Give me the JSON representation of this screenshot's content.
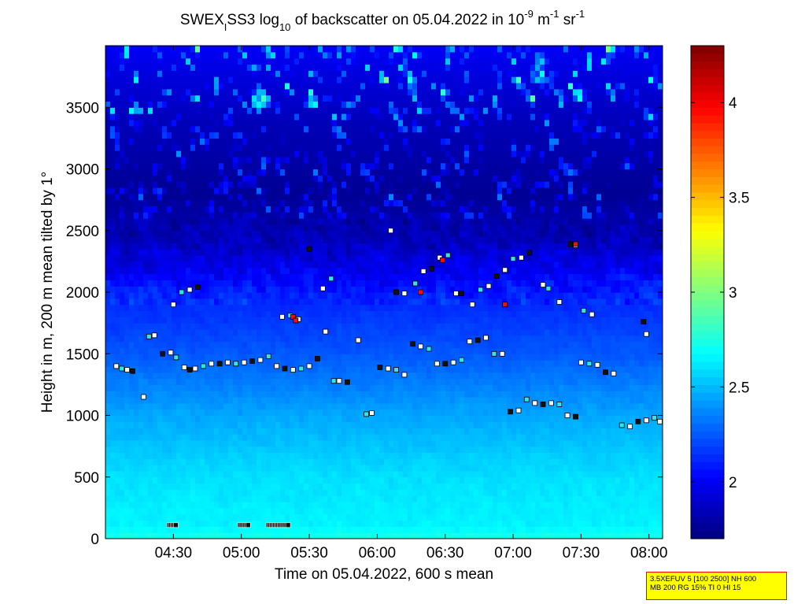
{
  "title": {
    "pre": "SWEX",
    "sub1": "I",
    "mid": "SS3 log",
    "sub2": "10",
    "post": " of backscatter on 05.04.2022 in 10",
    "sup1": "-9",
    "unit1": " m",
    "sup2": "-1",
    "unit2": " sr",
    "sup3": "-1"
  },
  "info_box": {
    "line1": "3.5XEFUV 5 [100 2500] NH 600",
    "line2": "MB 200 RG 15% TI 0 HI 15"
  },
  "colors": {
    "frame": "#000000",
    "info_border": "#ff0000",
    "info_fill": "#ffff00",
    "colormap": "jet"
  },
  "chart_data": {
    "type": "heatmap",
    "xlabel": "Time on 05.04.2022, 600 s mean",
    "ylabel": "Height in m, 200 m mean tilted by 1°",
    "x_range_hours": [
      4.0,
      8.1
    ],
    "y_range_m": [
      0,
      4000
    ],
    "x_ticks": [
      {
        "value": 4.5,
        "label": "04:30"
      },
      {
        "value": 5.0,
        "label": "05:00"
      },
      {
        "value": 5.5,
        "label": "05:30"
      },
      {
        "value": 6.0,
        "label": "06:00"
      },
      {
        "value": 6.5,
        "label": "06:30"
      },
      {
        "value": 7.0,
        "label": "07:00"
      },
      {
        "value": 7.5,
        "label": "07:30"
      },
      {
        "value": 8.0,
        "label": "08:00"
      }
    ],
    "y_ticks": [
      {
        "value": 0,
        "label": "0"
      },
      {
        "value": 500,
        "label": "500"
      },
      {
        "value": 1000,
        "label": "1000"
      },
      {
        "value": 1500,
        "label": "1500"
      },
      {
        "value": 2000,
        "label": "2000"
      },
      {
        "value": 2500,
        "label": "2500"
      },
      {
        "value": 3000,
        "label": "3000"
      },
      {
        "value": 3500,
        "label": "3500"
      }
    ],
    "colorbar": {
      "range": [
        1.7,
        4.3
      ],
      "ticks": [
        {
          "value": 2,
          "label": "2"
        },
        {
          "value": 2.5,
          "label": "2.5"
        },
        {
          "value": 3,
          "label": "3"
        },
        {
          "value": 3.5,
          "label": "3.5"
        },
        {
          "value": 4,
          "label": "4"
        }
      ]
    },
    "background_profile": [
      {
        "height": 0,
        "value": 2.75
      },
      {
        "height": 100,
        "value": 2.65
      },
      {
        "height": 500,
        "value": 2.6
      },
      {
        "height": 1000,
        "value": 2.45
      },
      {
        "height": 1500,
        "value": 2.25
      },
      {
        "height": 2000,
        "value": 2.1
      },
      {
        "height": 2400,
        "value": 1.85
      },
      {
        "height": 2800,
        "value": 1.75
      },
      {
        "height": 3400,
        "value": 1.85
      },
      {
        "height": 4000,
        "value": 2.0
      }
    ],
    "cloud_layers": [
      {
        "name": "low",
        "points": [
          [
            4.08,
            1400
          ],
          [
            4.12,
            1380
          ],
          [
            4.16,
            1370
          ],
          [
            4.2,
            1360
          ],
          [
            4.28,
            1150
          ],
          [
            4.32,
            1640
          ],
          [
            4.36,
            1650
          ],
          [
            4.42,
            1500
          ],
          [
            4.48,
            1510
          ],
          [
            4.52,
            1470
          ],
          [
            4.58,
            1390
          ],
          [
            4.62,
            1370
          ],
          [
            4.66,
            1380
          ],
          [
            4.72,
            1400
          ],
          [
            4.78,
            1420
          ],
          [
            4.84,
            1420
          ],
          [
            4.9,
            1430
          ],
          [
            4.96,
            1420
          ],
          [
            5.02,
            1430
          ],
          [
            5.08,
            1440
          ],
          [
            5.14,
            1450
          ],
          [
            5.2,
            1480
          ],
          [
            5.26,
            1400
          ],
          [
            5.32,
            1380
          ],
          [
            5.38,
            1370
          ],
          [
            5.44,
            1380
          ],
          [
            5.5,
            1400
          ],
          [
            5.56,
            1460
          ],
          [
            5.62,
            1680
          ],
          [
            5.68,
            1280
          ],
          [
            5.72,
            1280
          ],
          [
            5.78,
            1270
          ],
          [
            5.86,
            1610
          ],
          [
            5.92,
            1010
          ],
          [
            5.96,
            1020
          ],
          [
            6.02,
            1390
          ],
          [
            6.08,
            1380
          ],
          [
            6.14,
            1370
          ],
          [
            6.2,
            1330
          ],
          [
            6.26,
            1580
          ],
          [
            6.32,
            1560
          ],
          [
            6.38,
            1540
          ],
          [
            6.44,
            1420
          ],
          [
            6.5,
            1420
          ],
          [
            6.56,
            1430
          ],
          [
            6.62,
            1450
          ],
          [
            6.68,
            1600
          ],
          [
            6.74,
            1610
          ],
          [
            6.8,
            1630
          ],
          [
            6.86,
            1500
          ],
          [
            6.92,
            1500
          ],
          [
            6.98,
            1030
          ],
          [
            7.04,
            1040
          ],
          [
            7.1,
            1130
          ],
          [
            7.16,
            1100
          ],
          [
            7.22,
            1090
          ],
          [
            7.28,
            1100
          ],
          [
            7.34,
            1090
          ],
          [
            7.4,
            1000
          ],
          [
            7.46,
            990
          ],
          [
            7.5,
            1430
          ],
          [
            7.56,
            1420
          ],
          [
            7.62,
            1410
          ],
          [
            7.68,
            1350
          ],
          [
            7.74,
            1340
          ],
          [
            7.8,
            920
          ],
          [
            7.86,
            910
          ],
          [
            7.92,
            950
          ],
          [
            7.98,
            960
          ],
          [
            8.04,
            980
          ],
          [
            8.08,
            950
          ]
        ]
      },
      {
        "name": "mid",
        "points": [
          [
            4.5,
            1900
          ],
          [
            4.56,
            2000
          ],
          [
            4.62,
            2020
          ],
          [
            4.68,
            2040
          ],
          [
            5.3,
            1800
          ],
          [
            5.36,
            1810
          ],
          [
            5.42,
            1780
          ],
          [
            5.5,
            2350
          ],
          [
            5.6,
            2030
          ],
          [
            5.66,
            2110
          ],
          [
            6.1,
            2500
          ],
          [
            6.14,
            2000
          ],
          [
            6.2,
            1990
          ],
          [
            6.28,
            2070
          ],
          [
            6.34,
            2170
          ],
          [
            6.4,
            2190
          ],
          [
            6.46,
            2280
          ],
          [
            6.52,
            2300
          ],
          [
            6.58,
            1990
          ],
          [
            6.62,
            1990
          ],
          [
            6.7,
            1900
          ],
          [
            6.76,
            2020
          ],
          [
            6.82,
            2050
          ],
          [
            6.88,
            2130
          ],
          [
            6.94,
            2180
          ],
          [
            7.0,
            2270
          ],
          [
            7.06,
            2280
          ],
          [
            7.12,
            2320
          ],
          [
            7.22,
            2060
          ],
          [
            7.26,
            2030
          ],
          [
            7.34,
            1920
          ],
          [
            7.42,
            2390
          ],
          [
            7.46,
            2380
          ],
          [
            7.52,
            1850
          ],
          [
            7.58,
            1820
          ],
          [
            7.96,
            1760
          ],
          [
            7.98,
            1660
          ]
        ]
      }
    ],
    "ground_returns": [
      {
        "from": 4.47,
        "to": 4.52,
        "height": 110
      },
      {
        "from": 4.99,
        "to": 5.05,
        "height": 110
      },
      {
        "from": 5.2,
        "to": 5.35,
        "height": 110
      }
    ],
    "high_value_markers": [
      [
        5.38,
        1800
      ],
      [
        5.4,
        1770
      ],
      [
        6.32,
        2000
      ],
      [
        6.48,
        2260
      ],
      [
        6.94,
        1900
      ],
      [
        7.46,
        2390
      ]
    ]
  }
}
